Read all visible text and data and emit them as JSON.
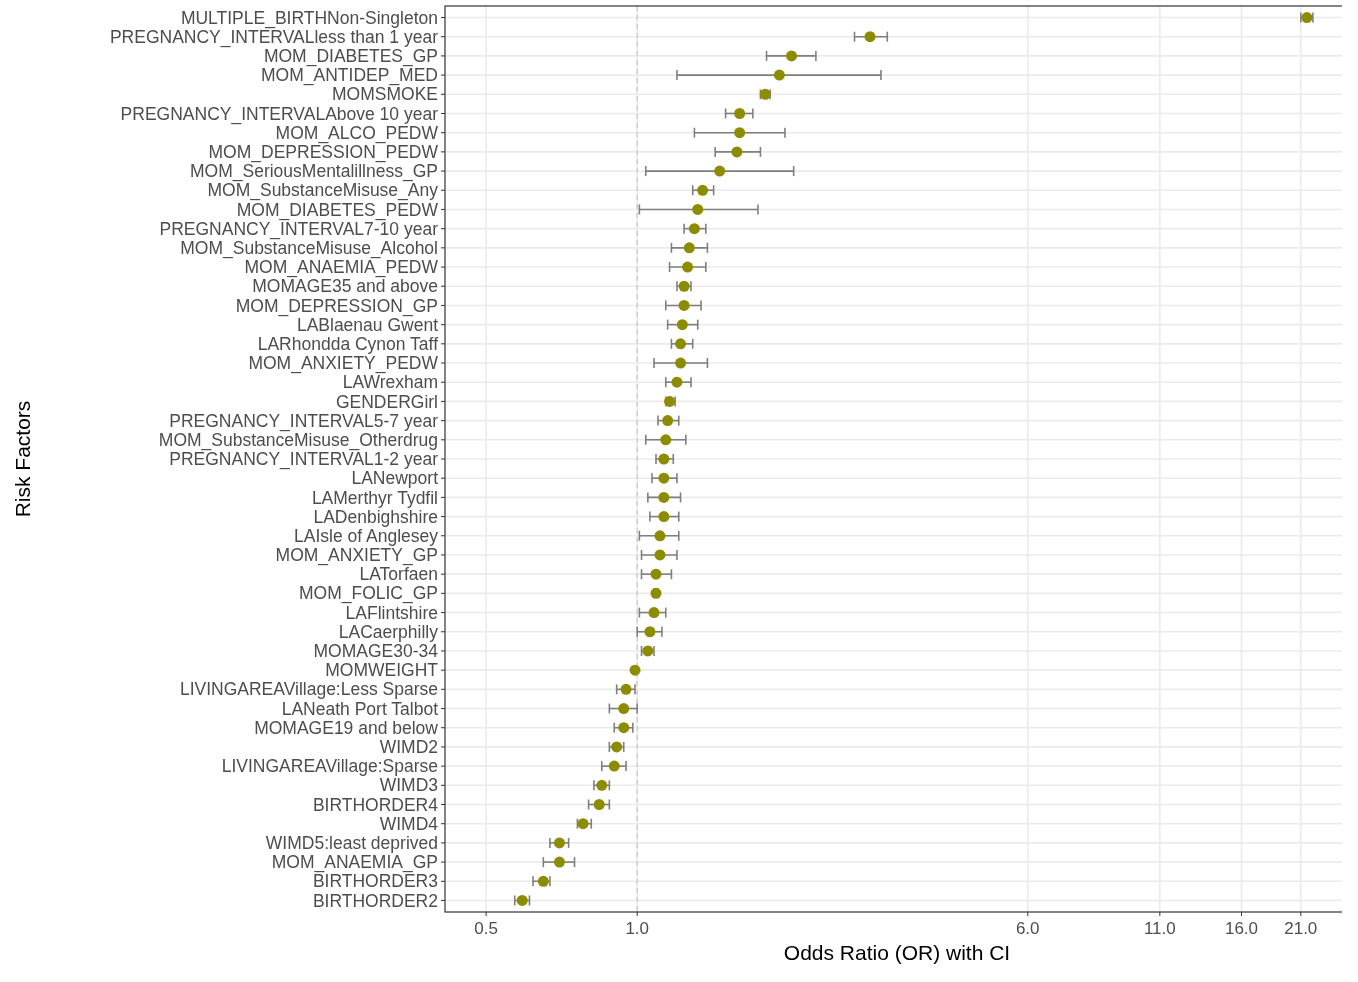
{
  "chart_data": {
    "type": "scatter",
    "orientation": "horizontal",
    "xlabel": "Odds Ratio (OR) with CI",
    "ylabel": "Risk Factors",
    "categories": [
      "MULTIPLE_BIRTHNon-Singleton",
      "PREGNANCY_INTERVALless than 1 year",
      "MOM_DIABETES_GP",
      "MOM_ANTIDEP_MED",
      "MOMSMOKE",
      "PREGNANCY_INTERVALAbove 10 year",
      "MOM_ALCO_PEDW",
      "MOM_DEPRESSION_PEDW",
      "MOM_SeriousMentalillness_GP",
      "MOM_SubstanceMisuse_Any",
      "MOM_DIABETES_PEDW",
      "PREGNANCY_INTERVAL7-10 year",
      "MOM_SubstanceMisuse_Alcohol",
      "MOM_ANAEMIA_PEDW",
      "MOMAGE35 and above",
      "MOM_DEPRESSION_GP",
      "LABlaenau Gwent",
      "LARhondda Cynon Taff",
      "MOM_ANXIETY_PEDW",
      "LAWrexham",
      "GENDERGirl",
      "PREGNANCY_INTERVAL5-7 year",
      "MOM_SubstanceMisuse_Otherdrug",
      "PREGNANCY_INTERVAL1-2 year",
      "LANewport",
      "LAMerthyr Tydfil",
      "LADenbighshire",
      "LAIsle of Anglesey",
      "MOM_ANXIETY_GP",
      "LATorfaen",
      "MOM_FOLIC_GP",
      "LAFlintshire",
      "LACaerphilly",
      "MOMAGE30-34",
      "MOMWEIGHT",
      "LIVINGAREAVillage:Less Sparse",
      "LANeath Port Talbot",
      "MOMAGE19 and below",
      "WIMD2",
      "LIVINGAREAVillage:Sparse",
      "WIMD3",
      "BIRTHORDER4",
      "WIMD4",
      "WIMD5:least deprived",
      "MOM_ANAEMIA_GP",
      "BIRTHORDER3",
      "BIRTHORDER2"
    ],
    "series": [
      {
        "color": "#8c8c00",
        "values": [
          21.6,
          2.91,
          2.03,
          1.92,
          1.8,
          1.6,
          1.6,
          1.58,
          1.46,
          1.35,
          1.32,
          1.3,
          1.27,
          1.26,
          1.24,
          1.24,
          1.23,
          1.22,
          1.22,
          1.2,
          1.16,
          1.15,
          1.14,
          1.13,
          1.13,
          1.13,
          1.13,
          1.11,
          1.11,
          1.09,
          1.09,
          1.08,
          1.06,
          1.05,
          0.99,
          0.95,
          0.94,
          0.94,
          0.91,
          0.9,
          0.85,
          0.84,
          0.78,
          0.7,
          0.7,
          0.65,
          0.59
        ],
        "errors": [
          [
            21.0,
            22.2
          ],
          [
            2.71,
            3.15
          ],
          [
            1.81,
            2.27
          ],
          [
            1.2,
            3.06
          ],
          [
            1.76,
            1.84
          ],
          [
            1.5,
            1.7
          ],
          [
            1.3,
            1.97
          ],
          [
            1.43,
            1.76
          ],
          [
            1.04,
            2.05
          ],
          [
            1.29,
            1.42
          ],
          [
            1.01,
            1.74
          ],
          [
            1.24,
            1.37
          ],
          [
            1.17,
            1.38
          ],
          [
            1.16,
            1.37
          ],
          [
            1.2,
            1.28
          ],
          [
            1.14,
            1.34
          ],
          [
            1.15,
            1.32
          ],
          [
            1.17,
            1.29
          ],
          [
            1.08,
            1.38
          ],
          [
            1.14,
            1.28
          ],
          [
            1.14,
            1.19
          ],
          [
            1.1,
            1.21
          ],
          [
            1.04,
            1.25
          ],
          [
            1.09,
            1.18
          ],
          [
            1.07,
            1.2
          ],
          [
            1.05,
            1.22
          ],
          [
            1.06,
            1.21
          ],
          [
            1.01,
            1.21
          ],
          [
            1.02,
            1.2
          ],
          [
            1.02,
            1.17
          ],
          [
            1.08,
            1.1
          ],
          [
            1.01,
            1.14
          ],
          [
            1.0,
            1.12
          ],
          [
            1.02,
            1.08
          ],
          null,
          [
            0.91,
            0.99
          ],
          [
            0.88,
            1.0
          ],
          [
            0.9,
            0.98
          ],
          [
            0.88,
            0.94
          ],
          [
            0.85,
            0.95
          ],
          [
            0.82,
            0.88
          ],
          [
            0.8,
            0.88
          ],
          [
            0.76,
            0.81
          ],
          [
            0.67,
            0.73
          ],
          [
            0.65,
            0.75
          ],
          [
            0.62,
            0.67
          ],
          [
            0.57,
            0.61
          ]
        ]
      }
    ],
    "xlim": [
      0.414,
      26.2
    ],
    "xticks": [
      {
        "value": 0.5,
        "label": "0.5"
      },
      {
        "value": 1,
        "label": "1.0"
      },
      {
        "value": 6,
        "label": "6.0"
      },
      {
        "value": 11,
        "label": "11.0"
      },
      {
        "value": 16,
        "label": "16.0"
      },
      {
        "value": 21,
        "label": "21.0"
      }
    ],
    "log": "x",
    "grid": true,
    "marker": "circle",
    "ref_lines": [
      {
        "axis": "x",
        "value": 1,
        "color": "#c8c8c8",
        "line_style": "dashed"
      }
    ]
  }
}
